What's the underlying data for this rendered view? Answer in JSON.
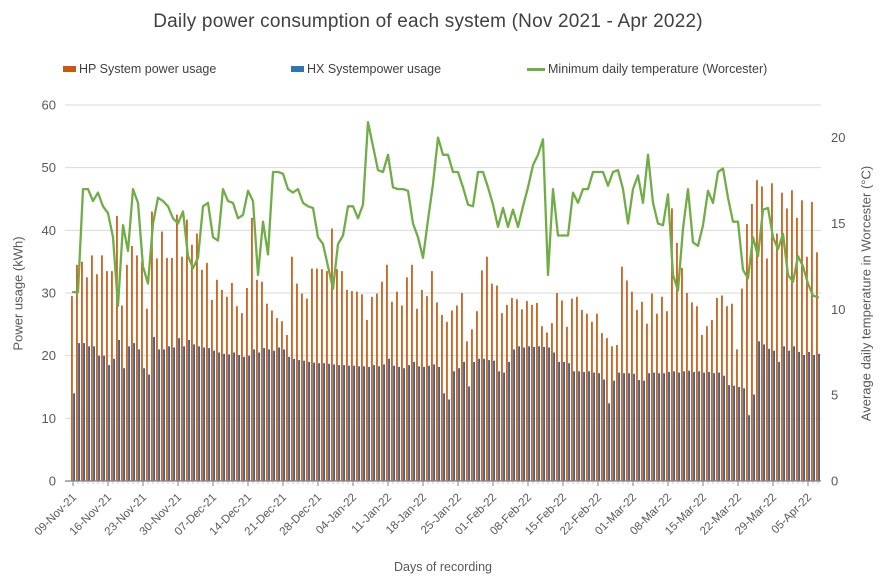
{
  "title": "Daily power consumption of each system (Nov 2021 - Apr 2022)",
  "legend": [
    {
      "label": "HP System power usage",
      "color": "#C55A11",
      "kind": "bar"
    },
    {
      "label": "HX Systempower usage",
      "color": "#2E75B6",
      "kind": "bar"
    },
    {
      "label": "Minimum daily temperature (Worcester)",
      "color": "#70AD47",
      "kind": "line"
    }
  ],
  "colors": {
    "hp_bar": "#C55A11",
    "hx_bar": "#44618C",
    "temp_line": "#70AD47",
    "gridline": "#D9D9D9",
    "axis_line": "#808080",
    "tick_text": "#595959",
    "title_text": "#404040"
  },
  "chart_data": {
    "type": "combo-bar-line",
    "x_axis_label": "Days of recording",
    "x_unit": "day",
    "x_tick_labels": [
      "09-Nov-21",
      "16-Nov-21",
      "23-Nov-21",
      "30-Nov-21",
      "07-Dec-21",
      "14-Dec-21",
      "21-Dec-21",
      "28-Dec-21",
      "04-Jan-22",
      "11-Jan-22",
      "18-Jan-22",
      "25-Jan-22",
      "01-Feb-22",
      "08-Feb-22",
      "15-Feb-22",
      "22-Feb-22",
      "01-Mar-22",
      "08-Mar-22",
      "15-Mar-22",
      "22-Mar-22",
      "29-Mar-22",
      "05-Apr-22"
    ],
    "x_tick_every_days": 7,
    "n_days": 150,
    "left_axis": {
      "label": "Power usage (kWh)",
      "min": 0,
      "max": 60,
      "tick_step": 10
    },
    "right_axis": {
      "label": "Average daily temperature in Worcester (°C)",
      "min": 0,
      "ticks": [
        0,
        5,
        10,
        15,
        20
      ],
      "scale_max": 21.9
    },
    "grid": "horizontal",
    "legend_position": "top",
    "series": [
      {
        "name": "HP System power usage",
        "type": "bar",
        "axis": "left",
        "color": "#C55A11",
        "values": [
          29.5,
          34.5,
          35,
          32.5,
          36,
          33,
          36,
          33.5,
          33.5,
          42.3,
          28,
          34.5,
          37.5,
          36,
          35,
          27.5,
          43,
          35.5,
          39.8,
          35.6,
          35.6,
          42.5,
          35.8,
          41.7,
          37.7,
          39.5,
          33.7,
          34.8,
          28.9,
          32.1,
          30.5,
          29.4,
          31.6,
          27.9,
          26.8,
          30.8,
          42,
          32.1,
          31.8,
          28.3,
          27.2,
          26,
          25.5,
          23.3,
          35.8,
          31.5,
          29.9,
          29.1,
          33.9,
          33.9,
          33.8,
          33.5,
          40.3,
          33.8,
          33.5,
          30.5,
          30.3,
          30.2,
          29.8,
          25.7,
          29.4,
          29.9,
          31.8,
          34.5,
          28.6,
          30.2,
          28,
          32.5,
          34.5,
          27.5,
          30.5,
          29.5,
          33.5,
          28.5,
          26.5,
          25.4,
          27.2,
          28,
          30,
          22.3,
          24.2,
          27.1,
          33.6,
          35.8,
          31.5,
          31.2,
          26.8,
          28.1,
          29.2,
          29,
          27.4,
          28.7,
          28.1,
          28.4,
          24.7,
          23.7,
          25.2,
          30,
          28.8,
          24.6,
          29.1,
          29.4,
          27.3,
          26.7,
          25.4,
          26.7,
          23.6,
          22.8,
          21.5,
          21.7,
          34.2,
          32,
          30.2,
          27.3,
          28.6,
          25.1,
          29.9,
          26.7,
          29.4,
          27.1,
          43.5,
          38,
          34,
          30,
          28.5,
          27.9,
          23.3,
          24.7,
          25.7,
          29.2,
          29.6,
          27.9,
          28.3,
          21,
          30.7,
          41,
          44.2,
          48,
          47,
          35.5,
          47.5,
          39.5,
          46,
          43.5,
          46.4,
          42,
          44.8,
          35.8,
          44.5,
          36.5
        ]
      },
      {
        "name": "HX Systempower usage",
        "type": "bar",
        "axis": "left",
        "color": "#44618C",
        "values": [
          14,
          22,
          22,
          21.5,
          21.5,
          20,
          20,
          18.5,
          19.5,
          22.5,
          18,
          21.5,
          22,
          21,
          18,
          17,
          23,
          21,
          21,
          21.5,
          21.3,
          22.8,
          21.5,
          22.5,
          21.8,
          21.5,
          21.3,
          21.2,
          20.8,
          20.5,
          20.3,
          20.2,
          20.5,
          20.1,
          19.8,
          20,
          21,
          20.5,
          21.2,
          21,
          20.8,
          21.3,
          21,
          19.8,
          19.5,
          19.3,
          19.2,
          19,
          18.9,
          18.8,
          18.8,
          18.7,
          18.6,
          18.5,
          18.5,
          18.4,
          18.4,
          18.3,
          18.3,
          18.2,
          18.5,
          18.3,
          18.6,
          19.5,
          18.4,
          18.2,
          18,
          18.5,
          19,
          18.3,
          18.2,
          18.4,
          18.6,
          18.2,
          14,
          13,
          17.5,
          18,
          19,
          15.1,
          19,
          19.5,
          19.5,
          19.3,
          19.2,
          17.5,
          17.3,
          19,
          21,
          21.5,
          21.3,
          21.5,
          21.4,
          21.5,
          21.4,
          21.3,
          20.5,
          19,
          19,
          18.8,
          17.5,
          17.5,
          17.4,
          17.5,
          17.3,
          17.2,
          16.2,
          12.4,
          16,
          17.3,
          17.2,
          17.2,
          17.1,
          16.1,
          16,
          17.2,
          17.3,
          17.2,
          17.2,
          17.4,
          17.5,
          17.3,
          17.5,
          17.6,
          17.4,
          17.5,
          17.3,
          17.4,
          17.2,
          17.3,
          16.8,
          15.3,
          15.2,
          15,
          14.8,
          10.5,
          13.8,
          22.3,
          21.8,
          21.1,
          20.8,
          19,
          21.5,
          20.8,
          21.5,
          20.6,
          20.1,
          20.6,
          20.1,
          20.3
        ]
      },
      {
        "name": "Minimum daily temperature (Worcester)",
        "type": "line",
        "axis": "right",
        "color": "#70AD47",
        "values": [
          11,
          11,
          17,
          17,
          16.3,
          16.8,
          16,
          15.6,
          14.2,
          10.2,
          14.9,
          13.4,
          17,
          16.2,
          12.5,
          11.5,
          15,
          16.5,
          16.3,
          16,
          15.3,
          15,
          15.7,
          13.1,
          12.4,
          13,
          16,
          16.2,
          14.2,
          14,
          17,
          16.3,
          16.2,
          15.3,
          15.5,
          16.9,
          16.3,
          12,
          15.1,
          13.2,
          18,
          18,
          17.9,
          17,
          16.8,
          17,
          16.2,
          16,
          15.9,
          14.2,
          13.8,
          12.5,
          11.2,
          13.8,
          14.3,
          16,
          16,
          15.3,
          16.1,
          20.9,
          19.5,
          18.1,
          18,
          19,
          17.1,
          17,
          17,
          16.9,
          15,
          14.2,
          13,
          15.2,
          17.3,
          20,
          19,
          19,
          18,
          18,
          17.1,
          16.1,
          16,
          18,
          18,
          17.1,
          16.1,
          14.8,
          15.9,
          14.8,
          15.8,
          14.8,
          16,
          17.1,
          18.4,
          19,
          19.9,
          12,
          17,
          14.3,
          14.3,
          14.3,
          16.8,
          16.2,
          17,
          17,
          18,
          18,
          18,
          17.2,
          18,
          18.1,
          17,
          15,
          17,
          17.8,
          16.2,
          19,
          16.2,
          15,
          14.9,
          16.7,
          12,
          11.1,
          14.7,
          17,
          13.9,
          13.7,
          14.9,
          16.9,
          16.2,
          18,
          18.2,
          16.5,
          15.1,
          15.1,
          12.3,
          11.8,
          14.2,
          13.1,
          15.8,
          15.9,
          14.2,
          13.5,
          14.4,
          12,
          11.6,
          13.1,
          12.5,
          11.5,
          10.8,
          10.7
        ]
      }
    ]
  }
}
